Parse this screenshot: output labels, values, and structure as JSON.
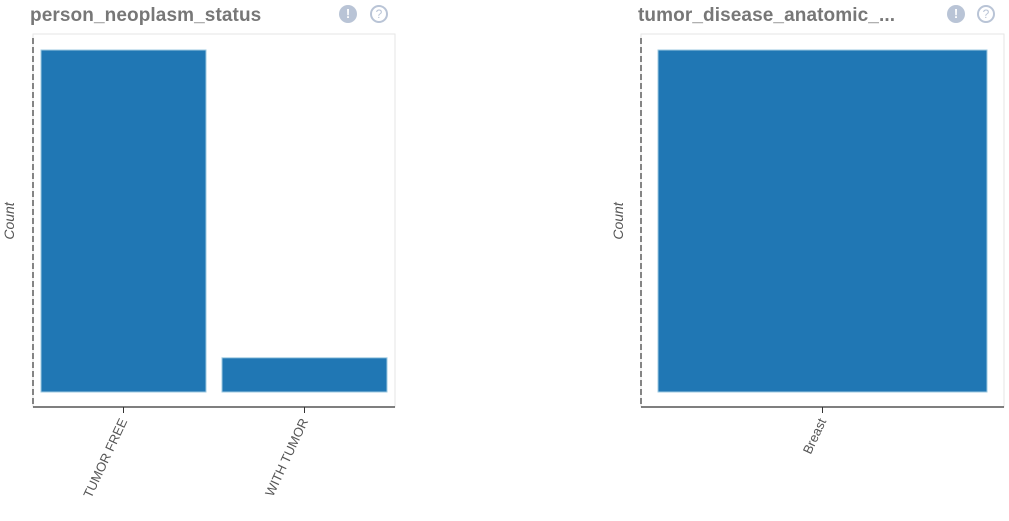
{
  "charts": [
    {
      "title": "person_neoplasm_status",
      "info_icon": "exclamation-icon",
      "help_icon": "question-icon",
      "info_glyph": "!",
      "help_glyph": "?"
    },
    {
      "title": "tumor_disease_anatomic_...",
      "info_icon": "exclamation-icon",
      "help_icon": "question-icon",
      "info_glyph": "!",
      "help_glyph": "?"
    }
  ],
  "colors": {
    "bar": "#2077b4",
    "bar_stroke": "#9ecae1",
    "frame": "#e6e6e6",
    "axis": "#333333"
  },
  "chart_data": [
    {
      "type": "bar",
      "title": "person_neoplasm_status",
      "xlabel": "",
      "ylabel": "Count",
      "categories": [
        "TUMOR FREE",
        "WITH TUMOR"
      ],
      "values": [
        100,
        10
      ],
      "ylim": [
        0,
        100
      ],
      "grid": false
    },
    {
      "type": "bar",
      "title": "tumor_disease_anatomic_...",
      "xlabel": "",
      "ylabel": "Count",
      "categories": [
        "Breast"
      ],
      "values": [
        100
      ],
      "ylim": [
        0,
        100
      ],
      "grid": false
    }
  ]
}
